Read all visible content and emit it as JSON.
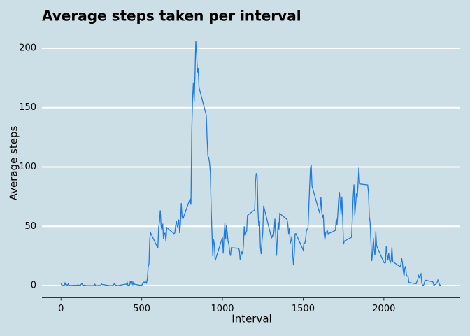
{
  "chart_data": {
    "type": "line",
    "title": "Average steps taken per interval",
    "x_label": "Interval",
    "y_label": "Average steps",
    "x": [
      0,
      5,
      10,
      15,
      20,
      25,
      30,
      35,
      40,
      45,
      50,
      55,
      100,
      105,
      110,
      115,
      120,
      125,
      130,
      135,
      140,
      145,
      150,
      155,
      200,
      205,
      210,
      215,
      220,
      225,
      230,
      235,
      240,
      245,
      250,
      255,
      300,
      305,
      310,
      315,
      320,
      325,
      330,
      335,
      340,
      345,
      350,
      355,
      400,
      405,
      410,
      415,
      420,
      425,
      430,
      435,
      440,
      445,
      450,
      455,
      500,
      505,
      510,
      515,
      520,
      525,
      530,
      535,
      540,
      545,
      550,
      555,
      600,
      605,
      610,
      615,
      620,
      625,
      630,
      635,
      640,
      645,
      650,
      655,
      700,
      705,
      710,
      715,
      720,
      725,
      730,
      735,
      740,
      745,
      750,
      755,
      800,
      805,
      810,
      815,
      820,
      825,
      830,
      835,
      840,
      845,
      850,
      855,
      900,
      905,
      910,
      915,
      920,
      925,
      930,
      935,
      940,
      945,
      950,
      955,
      1000,
      1005,
      1010,
      1015,
      1020,
      1025,
      1030,
      1035,
      1040,
      1045,
      1050,
      1055,
      1100,
      1105,
      1110,
      1115,
      1120,
      1125,
      1130,
      1135,
      1140,
      1145,
      1150,
      1155,
      1200,
      1205,
      1210,
      1215,
      1220,
      1225,
      1230,
      1235,
      1240,
      1245,
      1250,
      1255,
      1300,
      1305,
      1310,
      1315,
      1320,
      1325,
      1330,
      1335,
      1340,
      1345,
      1350,
      1355,
      1400,
      1405,
      1410,
      1415,
      1420,
      1425,
      1430,
      1435,
      1440,
      1445,
      1450,
      1455,
      1500,
      1505,
      1510,
      1515,
      1520,
      1525,
      1530,
      1535,
      1540,
      1545,
      1550,
      1555,
      1600,
      1605,
      1610,
      1615,
      1620,
      1625,
      1630,
      1635,
      1640,
      1645,
      1650,
      1655,
      1700,
      1705,
      1710,
      1715,
      1720,
      1725,
      1730,
      1735,
      1740,
      1745,
      1750,
      1755,
      1800,
      1805,
      1810,
      1815,
      1820,
      1825,
      1830,
      1835,
      1840,
      1845,
      1850,
      1855,
      1900,
      1905,
      1910,
      1915,
      1920,
      1925,
      1930,
      1935,
      1940,
      1945,
      1950,
      1955,
      2000,
      2005,
      2010,
      2015,
      2020,
      2025,
      2030,
      2035,
      2040,
      2045,
      2050,
      2055,
      2100,
      2105,
      2110,
      2115,
      2120,
      2125,
      2130,
      2135,
      2140,
      2145,
      2150,
      2155,
      2200,
      2205,
      2210,
      2215,
      2220,
      2225,
      2230,
      2235,
      2240,
      2245,
      2250,
      2255,
      2300,
      2305,
      2310,
      2315,
      2320,
      2325,
      2330,
      2335,
      2340,
      2345,
      2350,
      2355
    ],
    "values": [
      1.7,
      0.3,
      0.1,
      0.2,
      0.1,
      2.1,
      0.5,
      0.9,
      0,
      1.5,
      0.3,
      0.1,
      0.3,
      0.7,
      0.2,
      0.3,
      0,
      1.1,
      1.8,
      0.2,
      0.2,
      0.4,
      0.3,
      0,
      0,
      0,
      1.1,
      0,
      0,
      0.1,
      0,
      0.2,
      0,
      0,
      1.5,
      0.9,
      0,
      0,
      0,
      0,
      0.2,
      0.6,
      1.6,
      0.6,
      0.5,
      0.1,
      0,
      0,
      1.2,
      0.9,
      2.6,
      0,
      0.3,
      0.4,
      4.1,
      0.7,
      3.5,
      0.8,
      3.1,
      1.1,
      0,
      1.6,
      3,
      2.2,
      3.3,
      3,
      2.1,
      6.1,
      16,
      18.3,
      39.5,
      44.5,
      31.5,
      49.3,
      53.8,
      63.5,
      50,
      47.1,
      52.2,
      39.3,
      44,
      44.2,
      37.4,
      49,
      43.8,
      44.4,
      50.5,
      54.5,
      49.9,
      51,
      55.7,
      44.3,
      52.3,
      69.5,
      57.8,
      56.2,
      73.4,
      68.2,
      129.4,
      157.5,
      171.2,
      155.4,
      177.3,
      206.2,
      195.9,
      179.6,
      183.4,
      167,
      143.5,
      124,
      109.1,
      108.1,
      103.7,
      96,
      66.2,
      45.2,
      24.8,
      38.8,
      35,
      21.1,
      40.6,
      27,
      42.4,
      52.7,
      38.9,
      50.8,
      44.3,
      37.4,
      34.7,
      28.3,
      25.1,
      31.9,
      31.4,
      29.7,
      21.3,
      25.5,
      28.4,
      26.5,
      33.4,
      50,
      42,
      44.6,
      46,
      59.2,
      63.9,
      87.7,
      94.8,
      92.8,
      63.4,
      50.2,
      54.5,
      32.4,
      26.5,
      37.7,
      45.1,
      67.3,
      42.3,
      39.9,
      43.3,
      41,
      46.2,
      56.4,
      42.8,
      25.1,
      40,
      53.5,
      47.3,
      60.8,
      55.8,
      52,
      43.6,
      48.7,
      35.5,
      37.5,
      41.8,
      27.5,
      17.1,
      26.1,
      43.6,
      43.8,
      30,
      36.1,
      35.5,
      38.8,
      46,
      47.8,
      48.1,
      65.3,
      82.9,
      98.7,
      102.1,
      84,
      62.1,
      64.1,
      74.5,
      63.2,
      56.9,
      59.8,
      43.9,
      38.6,
      44.7,
      45.5,
      46.2,
      43.7,
      46.6,
      56.3,
      50.7,
      61.2,
      72.7,
      78.9,
      68.9,
      59.7,
      75.1,
      56.5,
      34.8,
      37.5,
      40.7,
      58,
      74.7,
      85.3,
      59.3,
      67.8,
      77.7,
      74.2,
      85.3,
      99.5,
      86.6,
      85.6,
      84.9,
      77.8,
      58,
      53.4,
      36.3,
      20.7,
      27.4,
      40,
      30.2,
      25.5,
      45.7,
      33.5,
      19.6,
      19,
      19.3,
      33.3,
      26.8,
      21.2,
      27.3,
      21.3,
      19.5,
      21.3,
      32.3,
      20.2,
      15.9,
      17.2,
      23.5,
      19.2,
      12.5,
      8,
      14.7,
      16.3,
      8.7,
      7.8,
      8.1,
      2.6,
      1.5,
      3.7,
      4.8,
      8.5,
      7.1,
      8.7,
      9.8,
      2.2,
      0.3,
      0.1,
      1.6,
      4.6,
      3.3,
      2.8,
      0,
      0.8,
      1,
      1.6,
      2.6,
      4.7,
      3.3,
      0.6,
      0.2,
      1.1
    ],
    "color": "#1e7be0",
    "xlim": [
      -118,
      2473
    ],
    "xticks": [
      0,
      500,
      1000,
      1500,
      2000
    ],
    "ylim": [
      -10.3,
      216.5
    ],
    "yticks": [
      0,
      50,
      100,
      150,
      200
    ],
    "grid": true
  }
}
